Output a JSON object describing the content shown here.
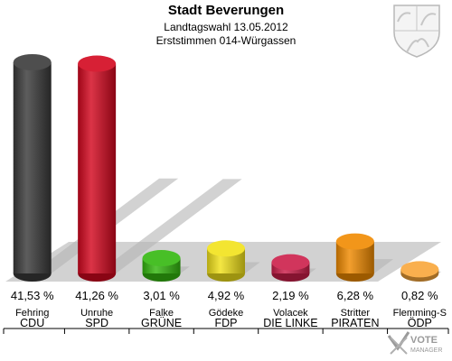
{
  "header": {
    "title": "Stadt Beverungen",
    "subtitle": "Landtagswahl 13.05.2012",
    "subtitle2": "Erststimmen 014-Würgassen"
  },
  "logo": {
    "brand_text": "VOTE",
    "brand_subtext": "MANAGER",
    "crest_icon": "coat-of-arms-icon"
  },
  "chart_data": {
    "type": "bar",
    "categories": [
      "CDU",
      "SPD",
      "GRÜNE",
      "FDP",
      "DIE LINKE",
      "PIRATEN",
      "ÖDP"
    ],
    "candidates": [
      "Fehring",
      "Unruhe",
      "Falke",
      "Gödeke",
      "Volacek",
      "Stritter",
      "Flemming-S"
    ],
    "values": [
      41.53,
      41.26,
      3.01,
      4.92,
      2.19,
      6.28,
      0.82
    ],
    "value_labels": [
      "41,53 %",
      "41,26 %",
      "3,01 %",
      "4,92 %",
      "2,19 %",
      "6,28 %",
      "0,82 %"
    ],
    "colors": [
      "#3a3a3a",
      "#d3071f",
      "#34b80f",
      "#f2e21a",
      "#cc1e4a",
      "#f08a00",
      "#f8a63a"
    ],
    "ylim": [
      0,
      41.53
    ],
    "grid": false,
    "legend": "none"
  }
}
